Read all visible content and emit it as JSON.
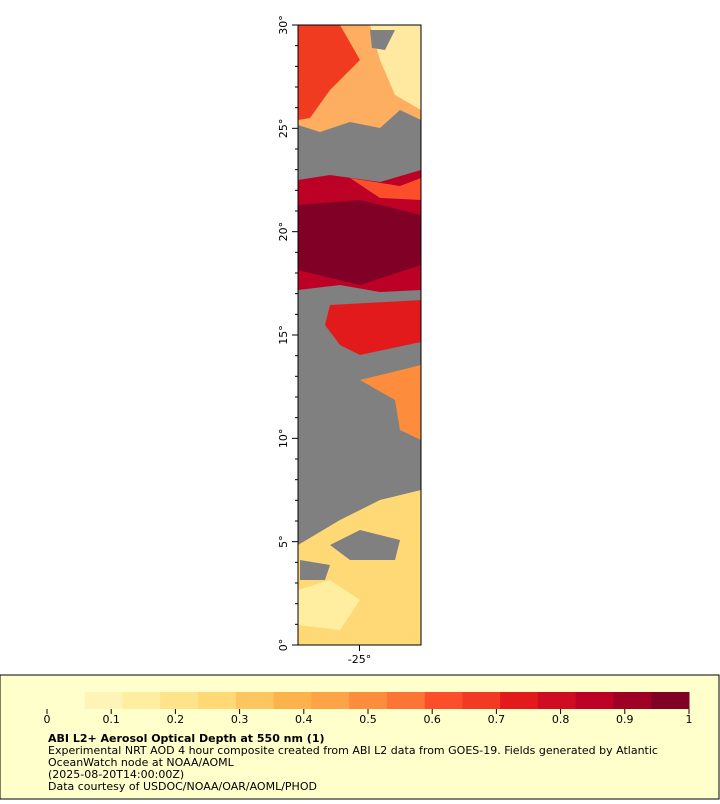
{
  "map": {
    "latlim": [
      0,
      30
    ],
    "lonlim": [
      -28,
      -22
    ],
    "lat_ticks": [
      {
        "value": 0,
        "label": "0°"
      },
      {
        "value": 5,
        "label": "5°"
      },
      {
        "value": 10,
        "label": "10°"
      },
      {
        "value": 15,
        "label": "15°"
      },
      {
        "value": 20,
        "label": "20°"
      },
      {
        "value": 25,
        "label": "25°"
      },
      {
        "value": 30,
        "label": "30°"
      }
    ],
    "lat_minor": [
      1,
      2,
      3,
      4,
      6,
      7,
      8,
      9,
      11,
      12,
      13,
      14,
      16,
      17,
      18,
      19,
      21,
      22,
      23,
      24,
      26,
      27,
      28,
      29
    ],
    "lon_ticks": [
      {
        "value": -25,
        "label": "-25°"
      }
    ]
  },
  "legend": {
    "title": "ABI L2+ Aerosol Optical Depth at 550 nm (1)",
    "lines": [
      "Experimental NRT AOD 4 hour composite created from ABI L2 data from GOES-19. Fields generated by Atlantic",
      "OceanWatch node at NOAA/AOML",
      "(2025-08-20T14:00:00Z)",
      "Data courtesy of USDOC/NOAA/OAR/AOML/PHOD"
    ],
    "colorbar": {
      "lim": [
        0,
        1
      ],
      "ticks": [
        0,
        0.1,
        0.2,
        0.3,
        0.4,
        0.5,
        0.6,
        0.7,
        0.8,
        0.9,
        1
      ],
      "colors": [
        "#ffffcc",
        "#fff4b8",
        "#ffeda0",
        "#fee38b",
        "#fed976",
        "#fec561",
        "#feb24c",
        "#fea346",
        "#fd8d3c",
        "#fd7536",
        "#fc4e2a",
        "#f23924",
        "#e31a1c",
        "#cf0c21",
        "#bd0026",
        "#9f0026",
        "#800026"
      ]
    }
  }
}
